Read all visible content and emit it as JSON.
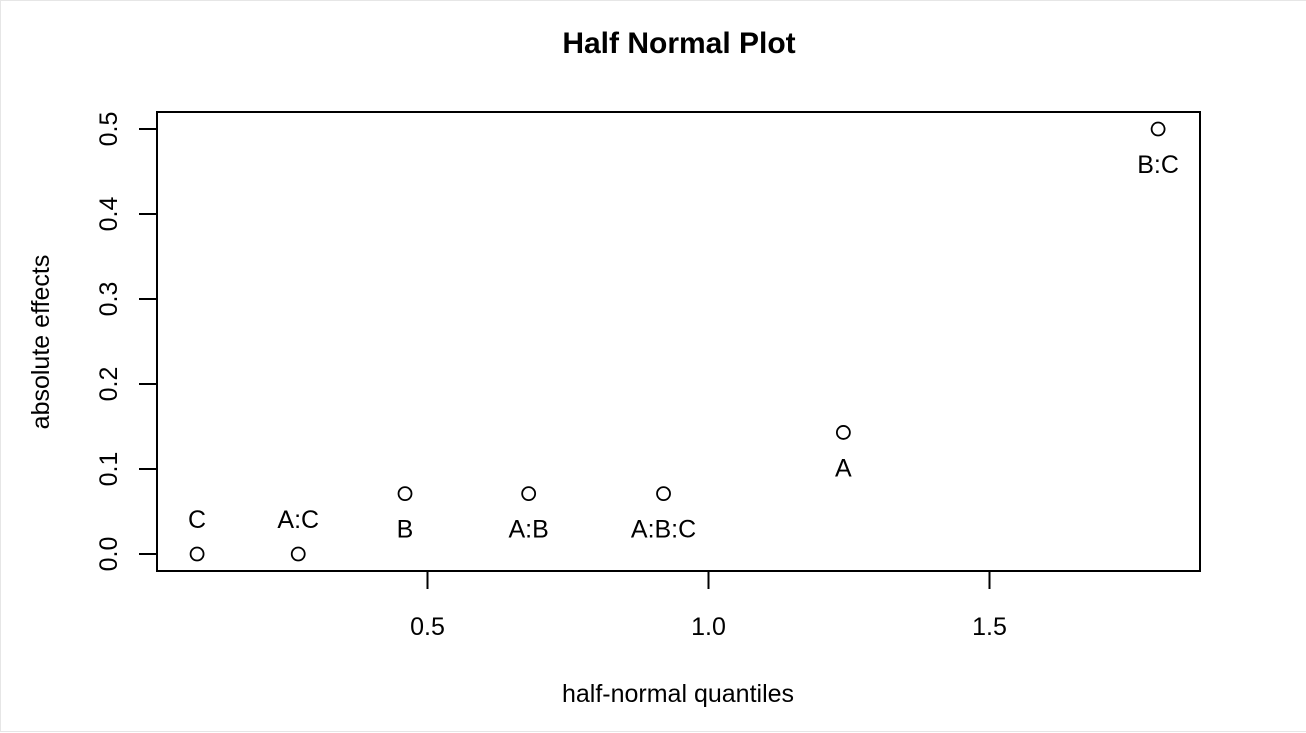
{
  "chart_data": {
    "type": "scatter",
    "title": "Half Normal Plot",
    "xlabel": "half-normal quantiles",
    "ylabel": "absolute effects",
    "xlim": [
      0.02,
      1.88
    ],
    "ylim": [
      -0.02,
      0.52
    ],
    "x_ticks": [
      0.5,
      1.0,
      1.5
    ],
    "x_tick_labels": [
      "0.5",
      "1.0",
      "1.5"
    ],
    "y_ticks": [
      0.0,
      0.1,
      0.2,
      0.3,
      0.4,
      0.5
    ],
    "y_tick_labels": [
      "0.0",
      "0.1",
      "0.2",
      "0.3",
      "0.4",
      "0.5"
    ],
    "grid": false,
    "legend": "none",
    "marker": "open-circle",
    "points": [
      {
        "label": "C",
        "x": 0.09,
        "y": 0.0,
        "label_pos": "above"
      },
      {
        "label": "A:C",
        "x": 0.27,
        "y": 0.0,
        "label_pos": "above"
      },
      {
        "label": "B",
        "x": 0.46,
        "y": 0.071,
        "label_pos": "below"
      },
      {
        "label": "A:B",
        "x": 0.68,
        "y": 0.071,
        "label_pos": "below"
      },
      {
        "label": "A:B:C",
        "x": 0.92,
        "y": 0.071,
        "label_pos": "below"
      },
      {
        "label": "A",
        "x": 1.24,
        "y": 0.143,
        "label_pos": "below"
      },
      {
        "label": "B:C",
        "x": 1.8,
        "y": 0.5,
        "label_pos": "below"
      }
    ]
  }
}
